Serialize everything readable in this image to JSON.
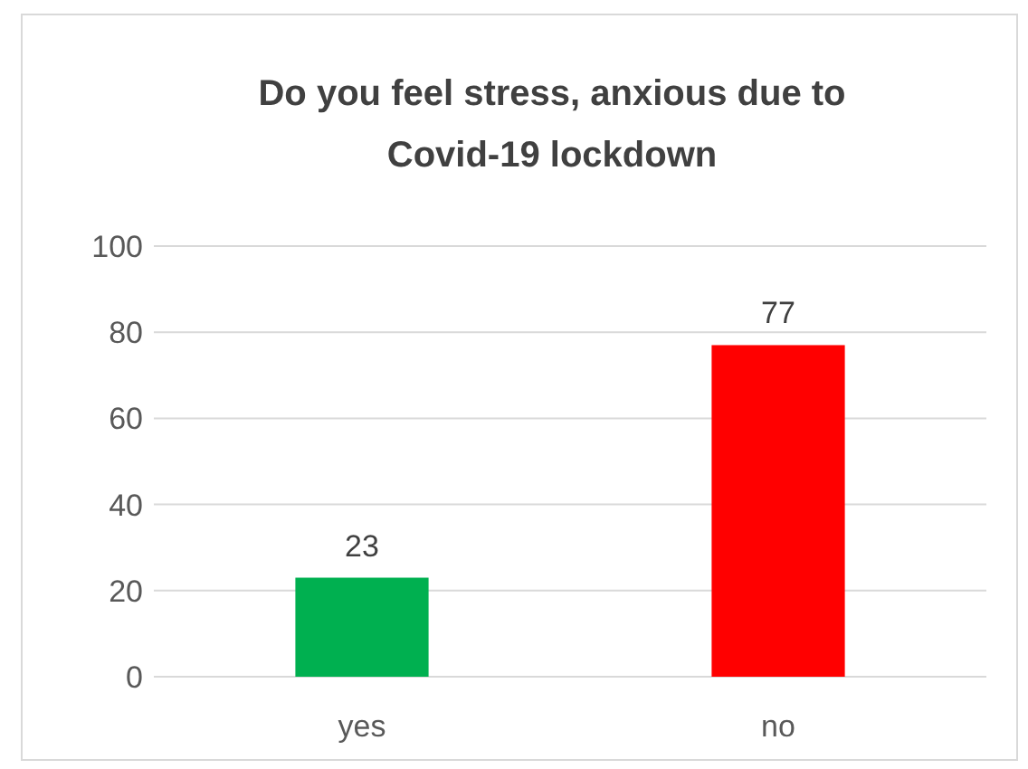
{
  "chart_data": {
    "type": "bar",
    "title": "Do you feel stress, anxious due to Covid-19 lockdown",
    "categories": [
      "yes",
      "no"
    ],
    "values": [
      23,
      77
    ],
    "colors": [
      "#00b050",
      "#ff0000"
    ],
    "ylim": [
      0,
      100
    ],
    "yticks": [
      0,
      20,
      40,
      60,
      80,
      100
    ],
    "grid": "y",
    "data_labels": true
  }
}
